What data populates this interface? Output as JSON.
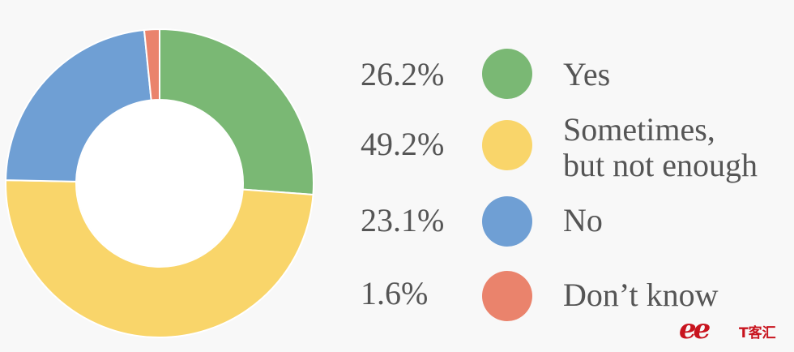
{
  "chart_data": {
    "type": "pie",
    "title": "",
    "donut": true,
    "legend_position": "right",
    "slices": [
      {
        "label": "Yes",
        "value": 26.2,
        "display": "26.2%",
        "color": "#7ab874"
      },
      {
        "label": "Sometimes,\nbut not enough",
        "value": 49.2,
        "display": "49.2%",
        "color": "#f9d56a"
      },
      {
        "label": "No",
        "value": 23.1,
        "display": "23.1%",
        "color": "#6f9fd4"
      },
      {
        "label": "Don’t know",
        "value": 1.6,
        "display": "1.6%",
        "color": "#ea836c"
      }
    ]
  },
  "watermark": {
    "logo": "ee",
    "text": "T客汇",
    "color": "#c8141e"
  }
}
